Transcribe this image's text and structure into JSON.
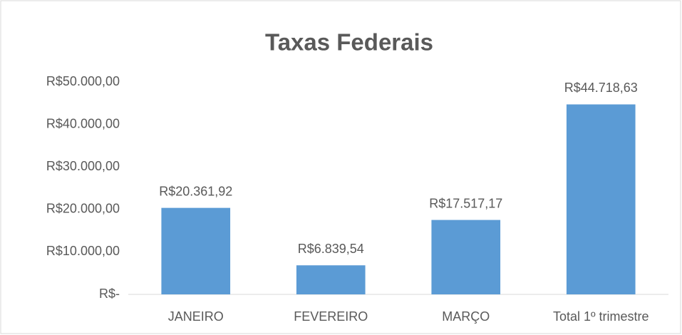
{
  "chart_data": {
    "type": "bar",
    "title": "Taxas Federais",
    "categories": [
      "JANEIRO",
      "FEVEREIRO",
      "MARÇO",
      "Total 1º trimestre"
    ],
    "values": [
      20361.92,
      6839.54,
      17517.17,
      44718.63
    ],
    "value_labels": [
      "R$20.361,92",
      "R$6.839,54",
      "R$17.517,17",
      "R$44.718,63"
    ],
    "color": "#5b9bd5",
    "ylim": [
      0,
      50000
    ],
    "yticks": [
      {
        "value": 0,
        "label": "R$-"
      },
      {
        "value": 10000,
        "label": "R$10.000,00"
      },
      {
        "value": 20000,
        "label": "R$20.000,00"
      },
      {
        "value": 30000,
        "label": "R$30.000,00"
      },
      {
        "value": 40000,
        "label": "R$40.000,00"
      },
      {
        "value": 50000,
        "label": "R$50.000,00"
      }
    ],
    "grid": false
  }
}
